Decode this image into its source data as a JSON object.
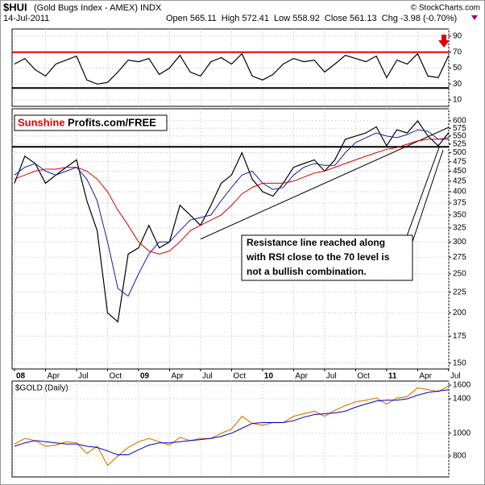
{
  "header": {
    "symbol": "$HUI",
    "name": "(Gold Bugs Index - AMEX) INDX",
    "date": "14-Jul-2011",
    "quote": [
      {
        "label": "Open",
        "value": "565.11"
      },
      {
        "label": "High",
        "value": "572.41"
      },
      {
        "label": "Low",
        "value": "558.92"
      },
      {
        "label": "Close",
        "value": "561.13"
      },
      {
        "label": "Chg",
        "value": "-3.98 (-0.70%)"
      }
    ],
    "copyright": "© StockCharts.com"
  },
  "annotations": {
    "logo_red": "Sunshine",
    "logo_black": "Profits.com/FREE",
    "note": [
      "Resistance line reached along",
      "with RSI close to the 70 level is",
      "not a bullish combination."
    ]
  },
  "chart_data": [
    {
      "type": "line",
      "ylim": [
        2,
        99
      ],
      "yticks": [
        90,
        70,
        50,
        30,
        10
      ],
      "log": false,
      "grid": true,
      "x": [
        "2008-01",
        "2008-02",
        "2008-03",
        "2008-04",
        "2008-05",
        "2008-06",
        "2008-07",
        "2008-08",
        "2008-09",
        "2008-10",
        "2008-11",
        "2008-12",
        "2009-01",
        "2009-02",
        "2009-03",
        "2009-04",
        "2009-05",
        "2009-06",
        "2009-07",
        "2009-08",
        "2009-09",
        "2009-10",
        "2009-11",
        "2009-12",
        "2010-01",
        "2010-02",
        "2010-03",
        "2010-04",
        "2010-05",
        "2010-06",
        "2010-07",
        "2010-08",
        "2010-09",
        "2010-10",
        "2010-11",
        "2010-12",
        "2011-01",
        "2011-02",
        "2011-03",
        "2011-04",
        "2011-05",
        "2011-06",
        "2011-07"
      ],
      "hlines": [
        {
          "value": 70,
          "color": "#e00000"
        },
        {
          "value": 25,
          "color": "#000000"
        }
      ],
      "series": [
        {
          "color": "#000000",
          "values": [
            55,
            62,
            48,
            40,
            55,
            60,
            65,
            35,
            30,
            32,
            45,
            60,
            58,
            62,
            42,
            50,
            66,
            45,
            40,
            58,
            63,
            55,
            68,
            40,
            35,
            42,
            55,
            62,
            58,
            60,
            45,
            55,
            66,
            62,
            58,
            65,
            38,
            60,
            55,
            68,
            40,
            38,
            66
          ]
        }
      ]
    },
    {
      "type": "line",
      "ylim": [
        145,
        643
      ],
      "log": true,
      "grid": true,
      "yticks": [
        600,
        575,
        550,
        525,
        500,
        475,
        450,
        425,
        400,
        375,
        350,
        325,
        300,
        275,
        250,
        225,
        200,
        175,
        150
      ],
      "x": [
        "2008-01",
        "2008-02",
        "2008-03",
        "2008-04",
        "2008-05",
        "2008-06",
        "2008-07",
        "2008-08",
        "2008-09",
        "2008-10",
        "2008-11",
        "2008-12",
        "2009-01",
        "2009-02",
        "2009-03",
        "2009-04",
        "2009-05",
        "2009-06",
        "2009-07",
        "2009-08",
        "2009-09",
        "2009-10",
        "2009-11",
        "2009-12",
        "2010-01",
        "2010-02",
        "2010-03",
        "2010-04",
        "2010-05",
        "2010-06",
        "2010-07",
        "2010-08",
        "2010-09",
        "2010-10",
        "2010-11",
        "2010-12",
        "2011-01",
        "2011-02",
        "2011-03",
        "2011-04",
        "2011-05",
        "2011-06",
        "2011-07"
      ],
      "xticks": [
        {
          "value": "2008-01",
          "label": "08"
        },
        {
          "value": "2008-04",
          "label": "Apr"
        },
        {
          "value": "2008-07",
          "label": "Jul"
        },
        {
          "value": "2008-10",
          "label": "Oct"
        },
        {
          "value": "2009-01",
          "label": "09"
        },
        {
          "value": "2009-04",
          "label": "Apr"
        },
        {
          "value": "2009-07",
          "label": "Jul"
        },
        {
          "value": "2009-10",
          "label": "Oct"
        },
        {
          "value": "2010-01",
          "label": "10"
        },
        {
          "value": "2010-04",
          "label": "Apr"
        },
        {
          "value": "2010-07",
          "label": "Jul"
        },
        {
          "value": "2010-10",
          "label": "Oct"
        },
        {
          "value": "2011-01",
          "label": "11"
        },
        {
          "value": "2011-04",
          "label": "Apr"
        },
        {
          "value": "2011-07",
          "label": "Jul"
        }
      ],
      "hlines": [
        {
          "value": 517,
          "color": "#000000"
        }
      ],
      "trendline": {
        "x": [
          "2009-07",
          "2011-07"
        ],
        "values": [
          305,
          578
        ]
      },
      "series": [
        {
          "color": "#000000",
          "values": [
            420,
            490,
            470,
            420,
            440,
            460,
            480,
            380,
            320,
            200,
            190,
            280,
            290,
            330,
            290,
            300,
            370,
            350,
            330,
            370,
            420,
            440,
            500,
            430,
            400,
            390,
            420,
            460,
            470,
            480,
            450,
            480,
            540,
            550,
            560,
            580,
            520,
            570,
            560,
            600,
            550,
            520,
            561
          ]
        },
        {
          "color": "#1a1aa6",
          "values": [
            440,
            460,
            470,
            450,
            440,
            450,
            460,
            430,
            380,
            300,
            230,
            220,
            250,
            280,
            300,
            300,
            320,
            340,
            345,
            350,
            380,
            410,
            440,
            450,
            420,
            405,
            410,
            440,
            460,
            470,
            465,
            465,
            500,
            530,
            545,
            560,
            550,
            545,
            555,
            570,
            565,
            540,
            545
          ]
        },
        {
          "color": "#d40000",
          "values": [
            430,
            440,
            450,
            455,
            455,
            460,
            460,
            450,
            430,
            400,
            360,
            330,
            300,
            285,
            280,
            285,
            300,
            320,
            330,
            340,
            350,
            370,
            395,
            410,
            420,
            420,
            420,
            425,
            435,
            445,
            450,
            460,
            470,
            480,
            490,
            500,
            510,
            515,
            525,
            535,
            540,
            540,
            540
          ]
        }
      ]
    },
    {
      "type": "line",
      "title": "$GOLD (Daily)",
      "ylim": [
        652,
        1665
      ],
      "log": true,
      "grid": true,
      "yticks": [
        1600,
        1400,
        1000,
        800
      ],
      "x": [
        "2008-01",
        "2008-02",
        "2008-03",
        "2008-04",
        "2008-05",
        "2008-06",
        "2008-07",
        "2008-08",
        "2008-09",
        "2008-10",
        "2008-11",
        "2008-12",
        "2009-01",
        "2009-02",
        "2009-03",
        "2009-04",
        "2009-05",
        "2009-06",
        "2009-07",
        "2009-08",
        "2009-09",
        "2009-10",
        "2009-11",
        "2009-12",
        "2010-01",
        "2010-02",
        "2010-03",
        "2010-04",
        "2010-05",
        "2010-06",
        "2010-07",
        "2010-08",
        "2010-09",
        "2010-10",
        "2010-11",
        "2010-12",
        "2011-01",
        "2011-02",
        "2011-03",
        "2011-04",
        "2011-05",
        "2011-06",
        "2011-07"
      ],
      "series": [
        {
          "color": "#e07b00",
          "values": [
            900,
            950,
            930,
            880,
            890,
            920,
            910,
            820,
            880,
            730,
            800,
            870,
            920,
            950,
            920,
            890,
            960,
            930,
            950,
            950,
            1000,
            1040,
            1180,
            1100,
            1080,
            1110,
            1110,
            1180,
            1210,
            1240,
            1180,
            1250,
            1310,
            1360,
            1380,
            1410,
            1330,
            1410,
            1430,
            1560,
            1530,
            1500,
            1590
          ]
        },
        {
          "color": "#0000cc",
          "values": [
            880,
            910,
            930,
            920,
            910,
            900,
            900,
            880,
            870,
            840,
            810,
            810,
            850,
            890,
            910,
            910,
            920,
            930,
            940,
            950,
            970,
            1000,
            1050,
            1100,
            1110,
            1110,
            1110,
            1130,
            1170,
            1200,
            1210,
            1220,
            1240,
            1290,
            1330,
            1370,
            1380,
            1380,
            1400,
            1450,
            1490,
            1510,
            1530
          ]
        }
      ]
    }
  ]
}
